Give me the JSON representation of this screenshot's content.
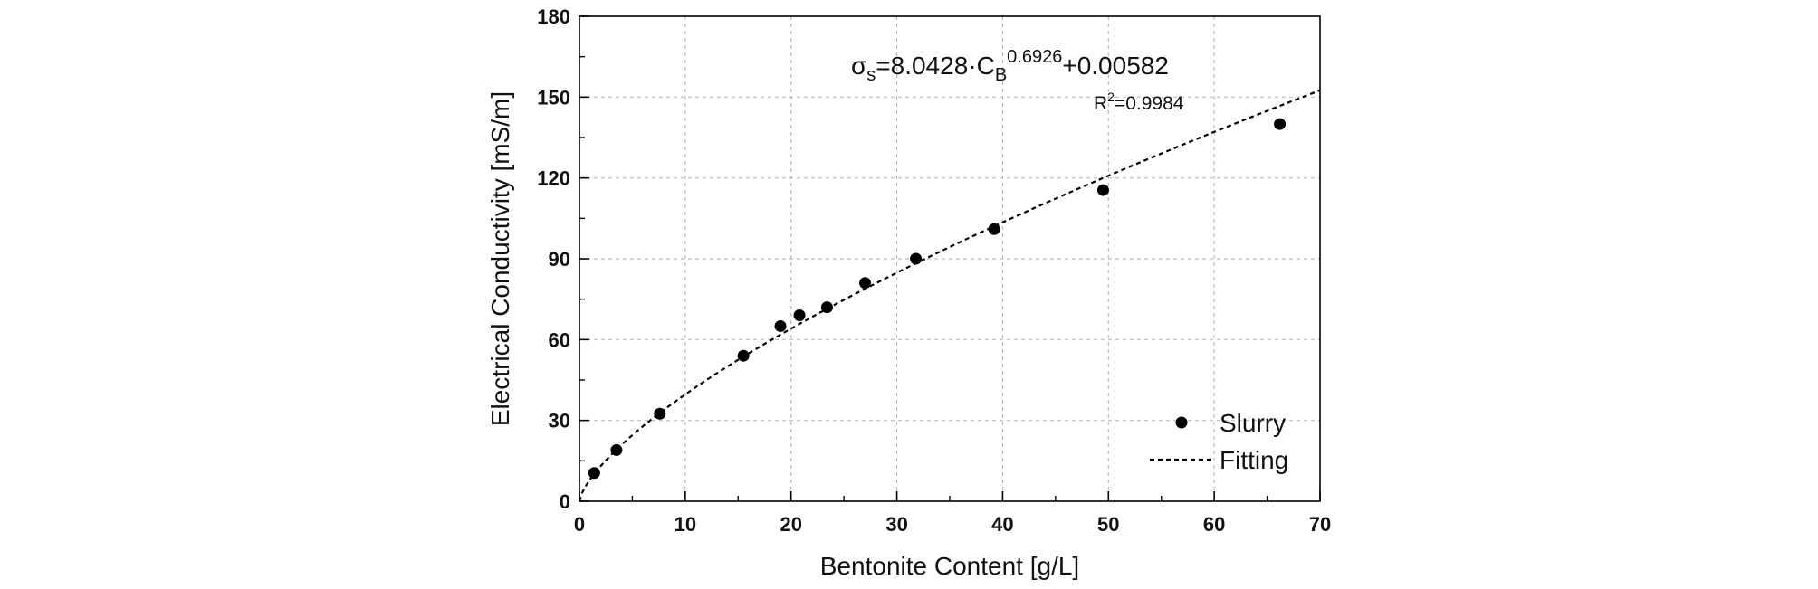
{
  "chart_data": {
    "type": "scatter",
    "xlabel": "Bentonite Content [g/L]",
    "ylabel": "Electrical Conductivity [mS/m]",
    "xlim": [
      0,
      70
    ],
    "ylim": [
      0,
      180
    ],
    "xticks": [
      "0",
      "10",
      "20",
      "30",
      "40",
      "50",
      "60",
      "70"
    ],
    "yticks": [
      "0",
      "30",
      "60",
      "90",
      "120",
      "150",
      "180"
    ],
    "grid": true,
    "legend_position": "bottom-right",
    "series": [
      {
        "name": "Slurry",
        "type": "scatter",
        "color": "#000000",
        "x": [
          1.4,
          3.5,
          7.6,
          15.5,
          19.0,
          20.8,
          23.4,
          27.0,
          31.8,
          39.2,
          49.5,
          66.2
        ],
        "y": [
          10.5,
          19.0,
          32.5,
          54.0,
          65.0,
          69.0,
          72.0,
          81.0,
          90.0,
          101.0,
          115.5,
          140.0
        ]
      },
      {
        "name": "Fitting",
        "type": "line",
        "style": "dashed",
        "color": "#000000",
        "model": {
          "a": 8.0428,
          "b": 0.6926,
          "c": 0.00582
        }
      }
    ],
    "annotations": {
      "equation": {
        "sigma": "σ",
        "sigma_sub": "s",
        "part1": "=8.0428·C",
        "c_sub": "B",
        "exponent": "0.6926",
        "part2": "+0.00582"
      },
      "r2": {
        "r": "R",
        "sup": "2",
        "value": "=0.9984"
      }
    }
  }
}
